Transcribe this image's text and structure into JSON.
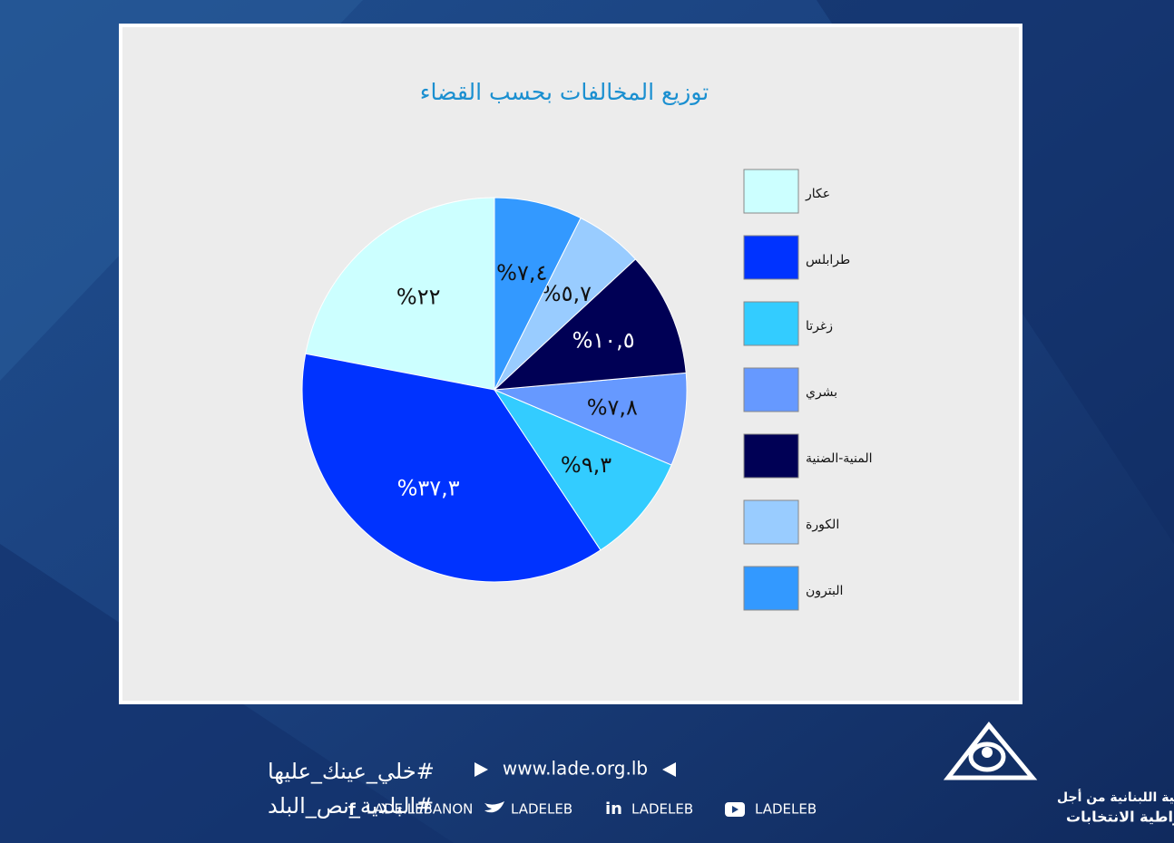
{
  "chart_data": {
    "type": "pie",
    "title": "توزيع المخالفات بحسب القضاء",
    "categories": [
      "عكار",
      "طرابلس",
      "زغرتا",
      "بشري",
      "المنية-الضنية",
      "الكورة",
      "البترون"
    ],
    "values": [
      22,
      37.3,
      9.3,
      7.8,
      10.5,
      5.7,
      7.4
    ],
    "value_labels": [
      "%٢٢",
      "%٣٧,٣",
      "%٩,٣",
      "%٧,٨",
      "%١٠,٥",
      "%٥,٧",
      "%٧,٤"
    ],
    "colors": [
      "#ccffff",
      "#0033ff",
      "#33ccff",
      "#6699ff",
      "#000055",
      "#99ccff",
      "#3399ff"
    ],
    "legend": "right"
  },
  "footer": {
    "hashtags": [
      "#خلي_عينك_عليها",
      "#البلدية_نص_البلد"
    ],
    "website": "www.lade.org.lb",
    "social": [
      "LADE.LEBANON",
      "LADELEB",
      "LADELEB",
      "LADELEB"
    ],
    "org_name": [
      "الجمعية اللبنانية من أجل",
      "ديمقراطية الانتخابات"
    ]
  }
}
